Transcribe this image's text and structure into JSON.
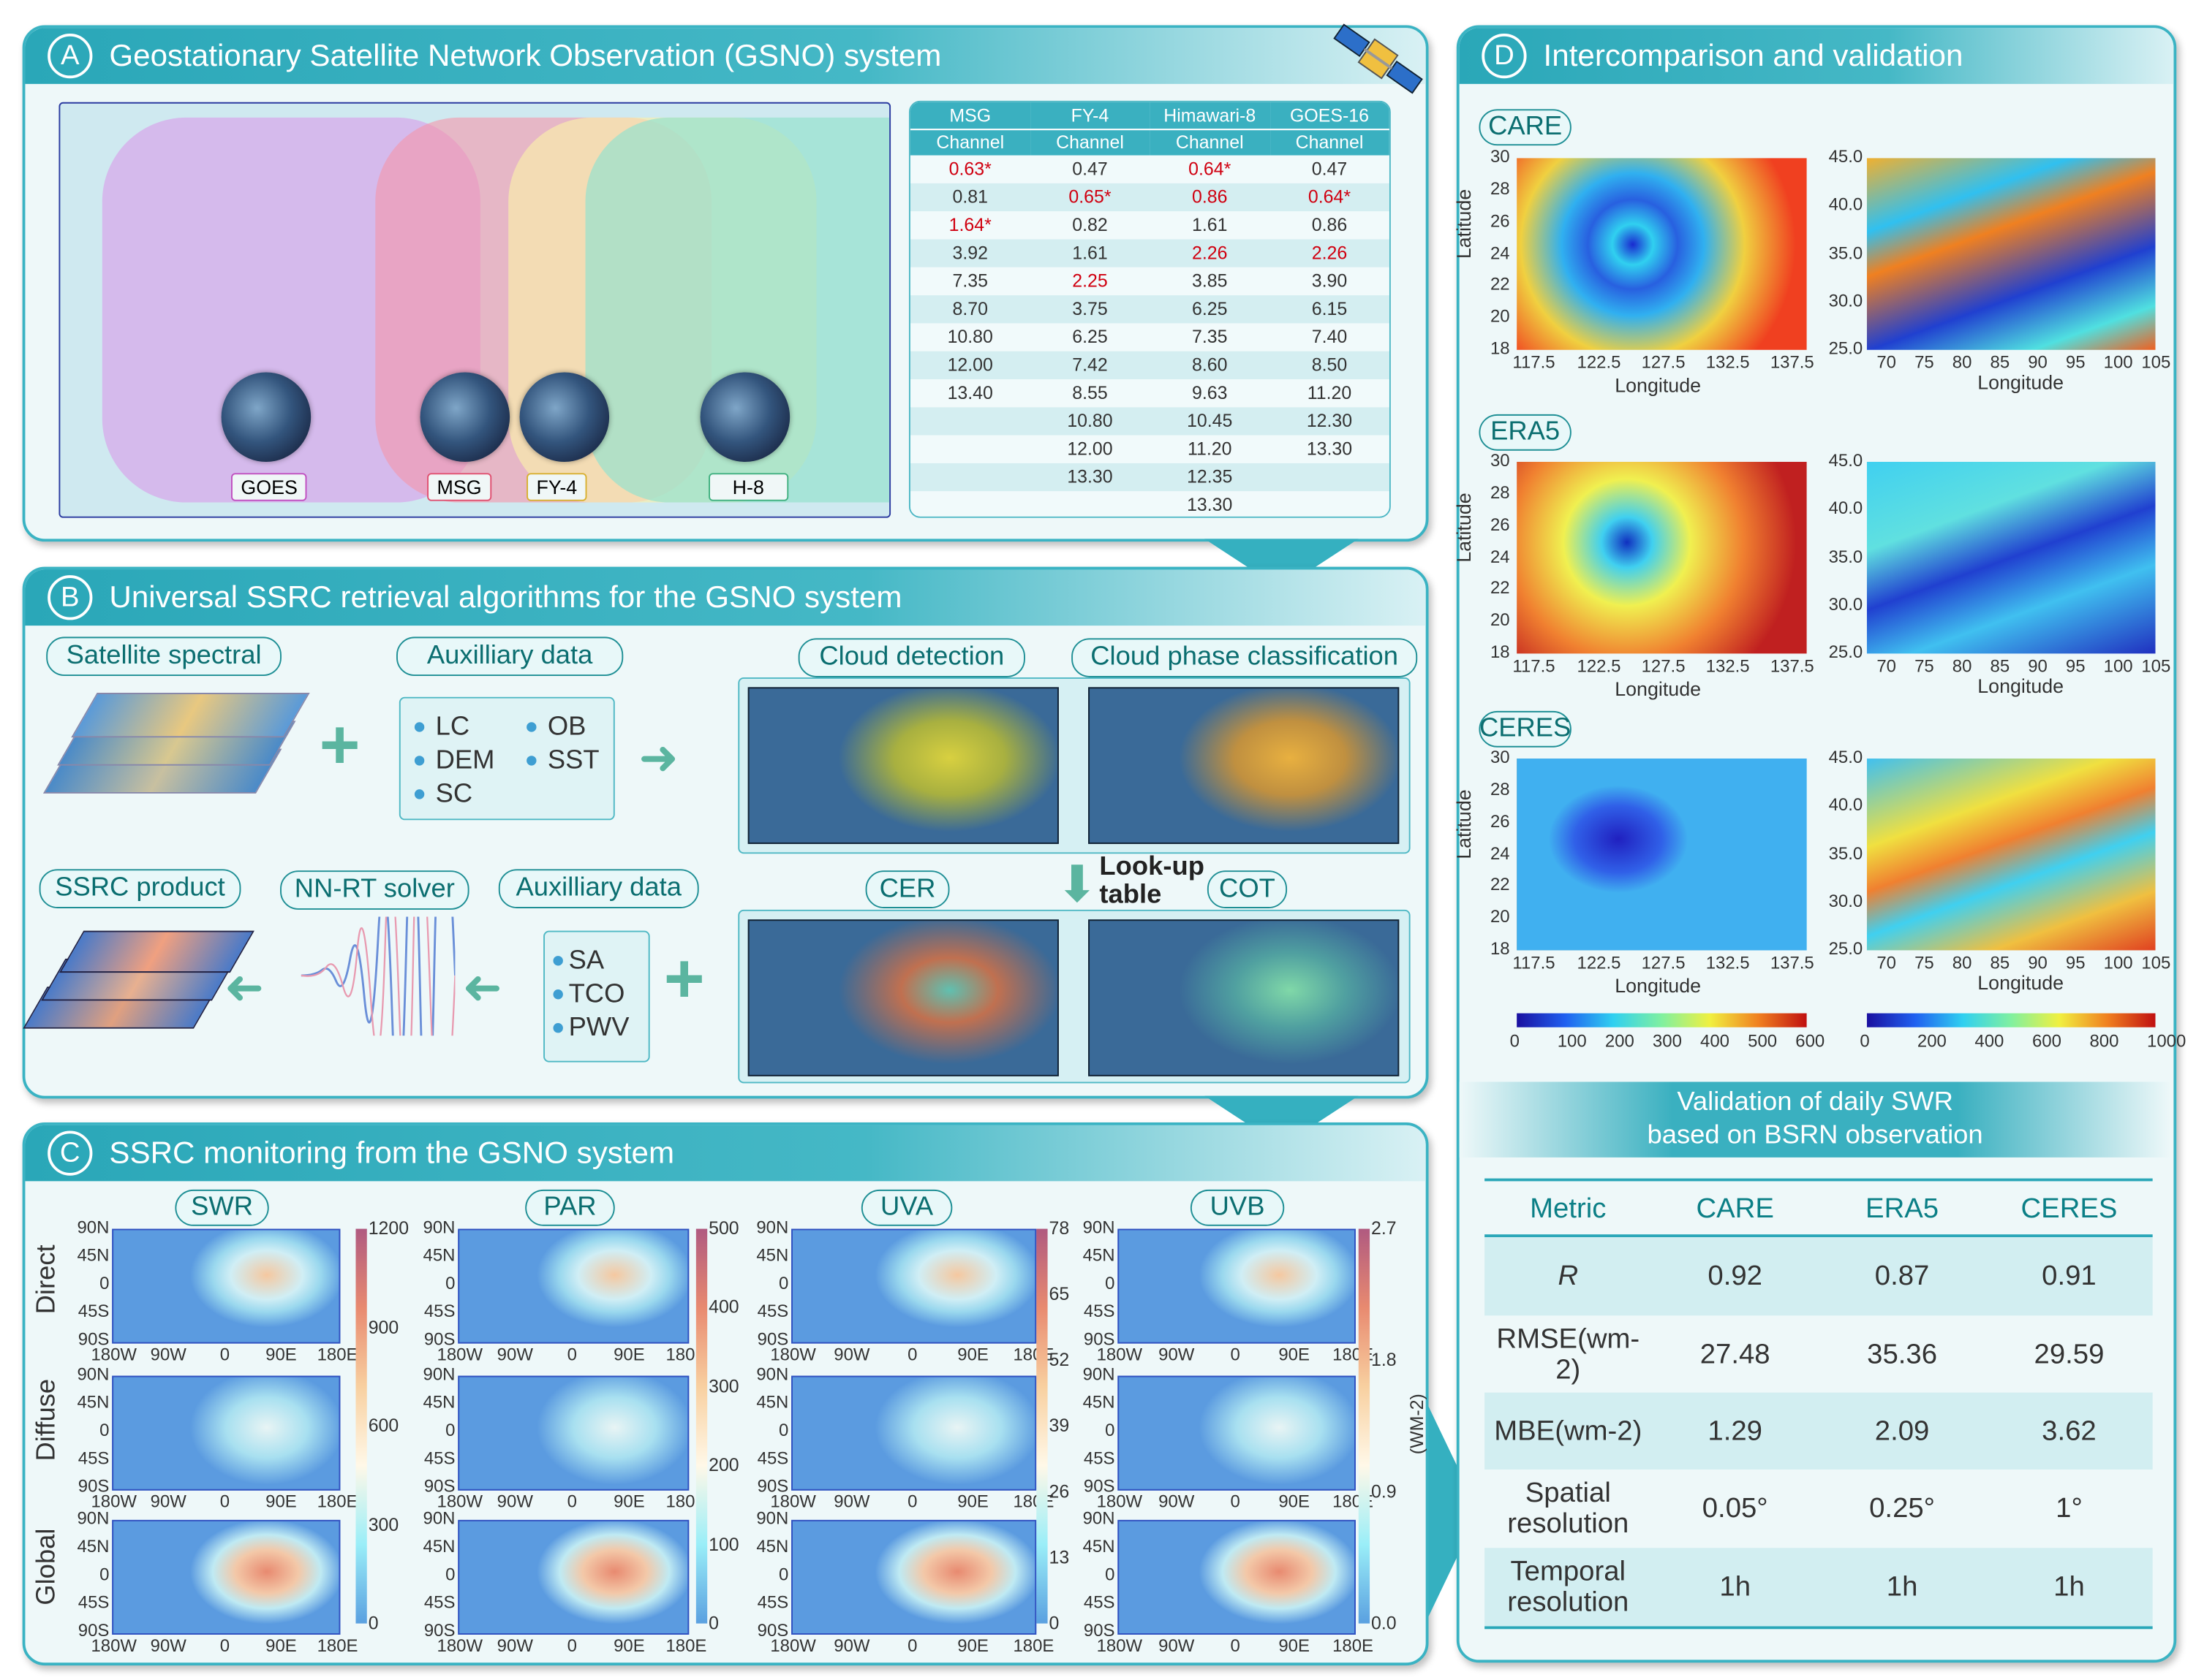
{
  "panel_a": {
    "letter": "A",
    "title": "Geostationary Satellite Network Observation (GSNO) system",
    "satellites": [
      "GOES",
      "MSG",
      "FY-4",
      "H-8"
    ],
    "table": {
      "headers": [
        "MSG",
        "FY-4",
        "Himawari-8",
        "GOES-16"
      ],
      "subheader": "Channel",
      "columns": [
        [
          "0.63*",
          "0.81",
          "1.64*",
          "3.92",
          "7.35",
          "8.70",
          "10.80",
          "12.00",
          "13.40",
          "",
          "",
          "",
          ""
        ],
        [
          "0.47",
          "0.65*",
          "0.82",
          "1.61",
          "2.25",
          "3.75",
          "6.25",
          "7.42",
          "8.55",
          "10.80",
          "12.00",
          "13.30",
          ""
        ],
        [
          "0.64*",
          "0.86",
          "1.61",
          "2.26",
          "3.85",
          "6.25",
          "7.35",
          "8.60",
          "9.63",
          "10.45",
          "11.20",
          "12.35",
          "13.30"
        ],
        [
          "0.47",
          "0.64*",
          "0.86",
          "2.26",
          "3.90",
          "6.15",
          "7.40",
          "8.50",
          "11.20",
          "12.30",
          "13.30",
          "",
          ""
        ]
      ],
      "highlighted": [
        [
          0,
          2
        ],
        [
          1,
          4
        ],
        [
          0,
          1,
          3
        ],
        [
          1,
          3
        ]
      ],
      "highlight_color": "#d00010"
    }
  },
  "panel_b": {
    "letter": "B",
    "title": "Universal SSRC retrieval algorithms for the GSNO system",
    "labels": {
      "satellite_spectral": "Satellite spectral",
      "auxiliary_1": "Auxilliary data",
      "cloud_detection": "Cloud detection",
      "cloud_phase": "Cloud phase classification",
      "ssrc_product": "SSRC product",
      "nn_rt_solver": "NN-RT solver",
      "auxiliary_2": "Auxilliary data",
      "cer": "CER",
      "cot": "COT",
      "lookup_line1": "Look-up",
      "lookup_line2": "table"
    },
    "aux1_items": [
      "LC",
      "OB",
      "DEM",
      "SST",
      "SC"
    ],
    "aux2_items": [
      "SA",
      "TCO",
      "PWV"
    ]
  },
  "panel_c": {
    "letter": "C",
    "title": "SSRC monitoring from the GSNO system",
    "rows": [
      "Direct",
      "Diffuse",
      "Global"
    ],
    "variables": [
      {
        "name": "SWR",
        "colorbar_ticks": [
          "1200",
          "900",
          "600",
          "300",
          "0"
        ]
      },
      {
        "name": "PAR",
        "colorbar_ticks": [
          "500",
          "400",
          "300",
          "200",
          "100",
          "0"
        ]
      },
      {
        "name": "UVA",
        "colorbar_ticks": [
          "78",
          "65",
          "52",
          "39",
          "26",
          "13",
          "0"
        ]
      },
      {
        "name": "UVB",
        "colorbar_ticks": [
          "2.7",
          "1.8",
          "0.9",
          "0.0"
        ]
      }
    ],
    "lat_ticks": [
      "90N",
      "45N",
      "0",
      "45S",
      "90S"
    ],
    "lon_ticks": [
      "180W",
      "90W",
      "0",
      "90E",
      "180E"
    ],
    "unit": "(WM-2)"
  },
  "panel_d": {
    "letter": "D",
    "title": "Intercomparison and validation",
    "products": [
      "CARE",
      "ERA5",
      "CERES"
    ],
    "left_lat_ticks": [
      "30",
      "28",
      "26",
      "24",
      "22",
      "20",
      "18"
    ],
    "left_lon_ticks": [
      "117.5",
      "122.5",
      "127.5",
      "132.5",
      "137.5"
    ],
    "right_lat_ticks": [
      "45.0",
      "40.0",
      "35.0",
      "30.0",
      "25.0"
    ],
    "right_lon_ticks": [
      "70",
      "75",
      "80",
      "85",
      "90",
      "95",
      "100",
      "105"
    ],
    "ylabel": "Latitude",
    "xlabel": "Longitude",
    "colorbar_left_ticks": [
      "0",
      "100",
      "200",
      "300",
      "400",
      "500",
      "600"
    ],
    "colorbar_right_ticks": [
      "0",
      "200",
      "400",
      "600",
      "800",
      "1000"
    ],
    "validation": {
      "title_line1": "Validation of daily SWR",
      "title_line2": "based on BSRN observation",
      "headers": [
        "Metric",
        "CARE",
        "ERA5",
        "CERES"
      ],
      "rows": [
        [
          "R",
          "0.92",
          "0.87",
          "0.91"
        ],
        [
          "RMSE(wm-2)",
          "27.48",
          "35.36",
          "29.59"
        ],
        [
          "MBE(wm-2)",
          "1.29",
          "2.09",
          "3.62"
        ],
        [
          "Spatial resolution",
          "0.05°",
          "0.25°",
          "1°"
        ],
        [
          "Temporal resolution",
          "1h",
          "1h",
          "1h"
        ]
      ]
    }
  },
  "colors": {
    "accent": "#2aa7b8",
    "panel_bg": "#eef8f9",
    "pill_text": "#0b6e70"
  }
}
